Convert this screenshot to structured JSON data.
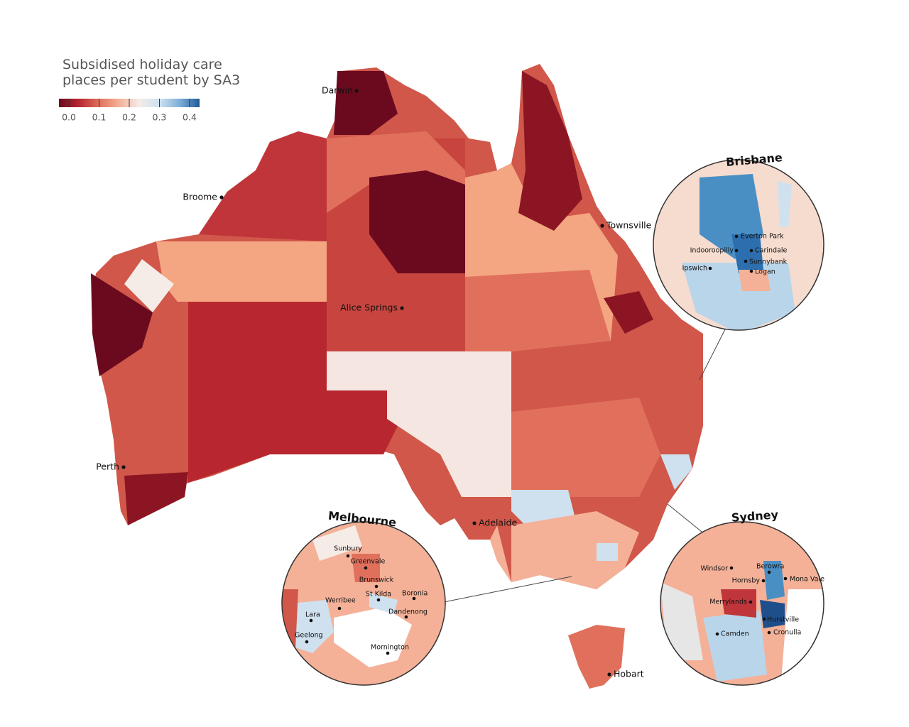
{
  "title": "Subsidised holiday care places per student by SA3",
  "legend": {
    "colors": [
      "#6b0a1f",
      "#b8272f",
      "#e0705c",
      "#f4b198",
      "#f5ece8",
      "#cfe1ef",
      "#7fb0d8",
      "#1f5a99"
    ],
    "lim": [
      -0.033,
      0.433
    ],
    "ticks": [
      {
        "value": 0,
        "label": "0.0"
      },
      0.1,
      0.2,
      0.3,
      0.4
    ]
  },
  "cities": [
    "Darwin",
    "Broome",
    "Townsville",
    "Alice Springs",
    "Perth",
    "Adelaide",
    "Hobart"
  ],
  "insets": [
    {
      "title": "Brisbane",
      "places": [
        "Everton Park",
        "Indooroopilly",
        "Carindale",
        "Sunnybank",
        "Ipswich",
        "Logan"
      ]
    },
    {
      "title": "Melbourne",
      "places": [
        "Sunbury",
        "Greenvale",
        "Brunswick",
        "St Kilda",
        "Boronia",
        "Werribee",
        "Dandenong",
        "Lara",
        "Geelong",
        "Mornington"
      ]
    },
    {
      "title": "Sydney",
      "places": [
        "Windsor",
        "Berowra",
        "Hornsby",
        "Mona Vale",
        "Merrylands",
        "Hurstville",
        "Camden",
        "Cronulla"
      ]
    }
  ]
}
